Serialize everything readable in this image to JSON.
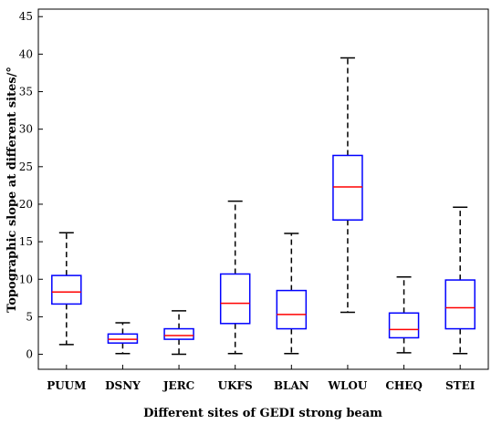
{
  "chart_data": {
    "type": "boxplot",
    "title": "",
    "xlabel": "Different sites of GEDI strong beam",
    "ylabel": "Topographic slope at different sites/°",
    "ylim": [
      -2,
      46
    ],
    "yticks": [
      0,
      5,
      10,
      15,
      20,
      25,
      30,
      35,
      40,
      45
    ],
    "grid": false,
    "legend": "none",
    "colors": {
      "box": "#0000ff",
      "median": "#ff0000",
      "whisker": "#000000"
    },
    "categories": [
      "PUUM",
      "DSNY",
      "JERC",
      "UKFS",
      "BLAN",
      "WLOU",
      "CHEQ",
      "STEI"
    ],
    "boxes": [
      {
        "category": "PUUM",
        "whisker_low": 1.3,
        "q1": 6.7,
        "median": 8.3,
        "q3": 10.5,
        "whisker_high": 16.2
      },
      {
        "category": "DSNY",
        "whisker_low": 0.1,
        "q1": 1.5,
        "median": 2.0,
        "q3": 2.7,
        "whisker_high": 4.2
      },
      {
        "category": "JERC",
        "whisker_low": 0.0,
        "q1": 2.0,
        "median": 2.5,
        "q3": 3.4,
        "whisker_high": 5.8
      },
      {
        "category": "UKFS",
        "whisker_low": 0.1,
        "q1": 4.1,
        "median": 6.8,
        "q3": 10.7,
        "whisker_high": 20.4
      },
      {
        "category": "BLAN",
        "whisker_low": 0.1,
        "q1": 3.4,
        "median": 5.3,
        "q3": 8.5,
        "whisker_high": 16.1
      },
      {
        "category": "WLOU",
        "whisker_low": 5.6,
        "q1": 17.9,
        "median": 22.3,
        "q3": 26.5,
        "whisker_high": 39.5
      },
      {
        "category": "CHEQ",
        "whisker_low": 0.2,
        "q1": 2.2,
        "median": 3.3,
        "q3": 5.5,
        "whisker_high": 10.3
      },
      {
        "category": "STEI",
        "whisker_low": 0.1,
        "q1": 3.4,
        "median": 6.2,
        "q3": 9.9,
        "whisker_high": 19.6
      }
    ]
  }
}
